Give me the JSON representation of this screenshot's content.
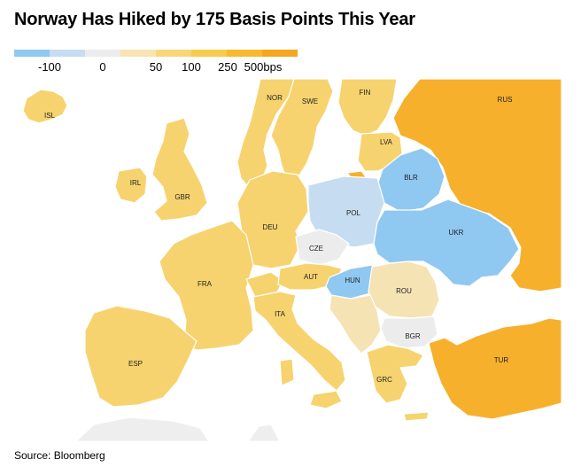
{
  "title": "Norway Has Hiked by 175 Basis Points This Year",
  "legend": {
    "colors": [
      "#8fc8f0",
      "#c6dcf0",
      "#ececec",
      "#f8e4b2",
      "#f8d679",
      "#f8cb4f",
      "#f7b932",
      "#f6a620"
    ],
    "ticks": [
      "-100",
      "0",
      "50",
      "100",
      "250",
      "500bps"
    ]
  },
  "colors": {
    "land_default": "#f6d36e",
    "neutral": "#ececec",
    "hike_light": "#f5e3b4",
    "hike_mid": "#f6d36e",
    "hike_high": "#f6b02c",
    "cut_light": "#c6dcf0",
    "cut_strong": "#8fc8f0",
    "background_land": "#eeeeee"
  },
  "countries": [
    {
      "code": "ISL"
    },
    {
      "code": "NOR"
    },
    {
      "code": "SWE"
    },
    {
      "code": "FIN"
    },
    {
      "code": "RUS"
    },
    {
      "code": "LVA"
    },
    {
      "code": "BLR"
    },
    {
      "code": "IRL"
    },
    {
      "code": "GBR"
    },
    {
      "code": "DEU"
    },
    {
      "code": "POL"
    },
    {
      "code": "UKR"
    },
    {
      "code": "CZE"
    },
    {
      "code": "FRA"
    },
    {
      "code": "AUT"
    },
    {
      "code": "HUN"
    },
    {
      "code": "ROU"
    },
    {
      "code": "ITA"
    },
    {
      "code": "BGR"
    },
    {
      "code": "ESP"
    },
    {
      "code": "GRC"
    },
    {
      "code": "TUR"
    }
  ],
  "source": "Source: Bloomberg"
}
